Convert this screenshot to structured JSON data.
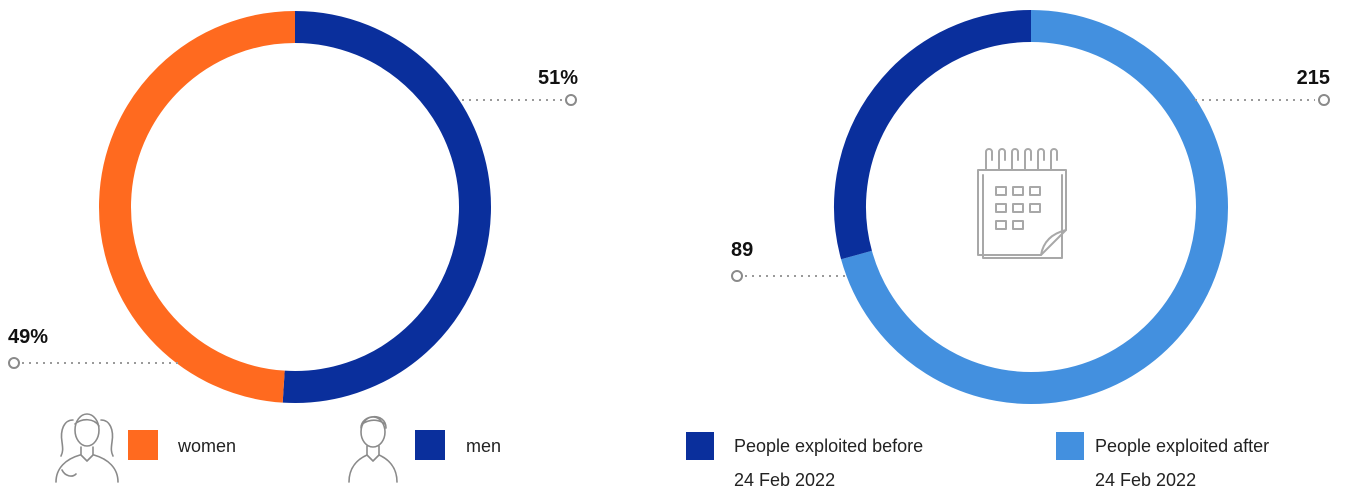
{
  "chart_data": [
    {
      "type": "pie",
      "categories": [
        "women",
        "men"
      ],
      "values": [
        49,
        51
      ],
      "data_labels": [
        "49%",
        "51%"
      ],
      "colors": [
        "#ff6a1f",
        "#0a2f9c"
      ],
      "legend": {
        "items": [
          {
            "label": "women",
            "color": "#ff6a1f",
            "icon": "woman-icon"
          },
          {
            "label": "men",
            "color": "#0a2f9c",
            "icon": "man-icon"
          }
        ]
      }
    },
    {
      "type": "pie",
      "categories": [
        "People exploited before 24 Feb 2022",
        "People exploited after 24 Feb 2022"
      ],
      "values": [
        89,
        215
      ],
      "data_labels": [
        "89",
        "215"
      ],
      "colors": [
        "#0a2f9c",
        "#4390df"
      ],
      "center_icon": "calendar-icon",
      "legend": {
        "items": [
          {
            "line1": "People exploited before",
            "line2": "24 Feb 2022",
            "color": "#0a2f9c"
          },
          {
            "line1": "People exploited after",
            "line2": "24 Feb 2022",
            "color": "#4390df"
          }
        ]
      }
    }
  ]
}
